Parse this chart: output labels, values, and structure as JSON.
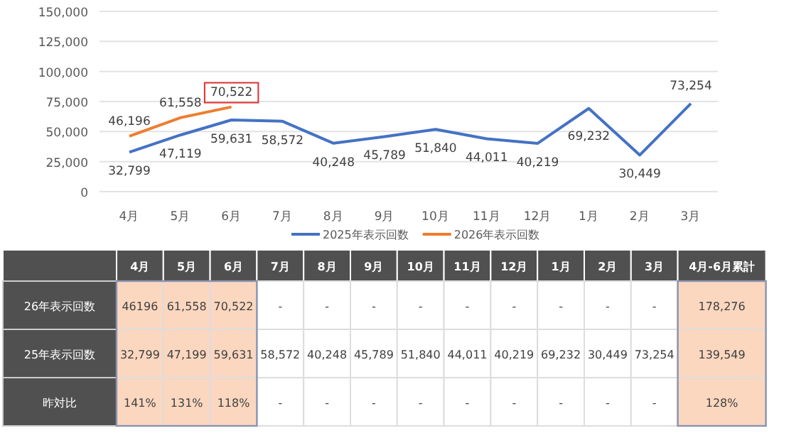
{
  "chart_data": {
    "type": "line",
    "categories": [
      "4月",
      "5月",
      "6月",
      "7月",
      "8月",
      "9月",
      "10月",
      "11月",
      "12月",
      "1月",
      "2月",
      "3月"
    ],
    "series": [
      {
        "name": "2025年表示回数",
        "color": "#4472c4",
        "values": [
          32799,
          47119,
          59631,
          58572,
          40248,
          45789,
          51840,
          44011,
          40219,
          69232,
          30449,
          73254
        ],
        "value_labels": [
          "32,799",
          "47,119",
          "59,631",
          "58,572",
          "40,248",
          "45,789",
          "51,840",
          "44,011",
          "40,219",
          "69,232",
          "30,449",
          "73,254"
        ]
      },
      {
        "name": "2026年表示回数",
        "color": "#ed7d31",
        "values": [
          46196,
          61558,
          70522,
          null,
          null,
          null,
          null,
          null,
          null,
          null,
          null,
          null
        ],
        "value_labels": [
          "46,196",
          "61,558",
          "70,522",
          null,
          null,
          null,
          null,
          null,
          null,
          null,
          null,
          null
        ]
      }
    ],
    "ylim": [
      0,
      150000
    ],
    "yticks": [
      {
        "value": 0,
        "label": "0"
      },
      {
        "value": 25000,
        "label": "25,000"
      },
      {
        "value": 50000,
        "label": "50,000"
      },
      {
        "value": 75000,
        "label": "75,000"
      },
      {
        "value": 100000,
        "label": "100,000"
      },
      {
        "value": 125000,
        "label": "125,000"
      },
      {
        "value": 150000,
        "label": "150,000"
      }
    ],
    "grid": "y",
    "legend": "bottom",
    "line_style": "solid",
    "marker": "none",
    "annotations": [
      "4月",
      "5月",
      "6月",
      "7月",
      "8月",
      "9月",
      "10月",
      "11月",
      "12月",
      "1月",
      "2月",
      "3月",
      "4月-6月累計",
      "26年表示回数",
      "46196",
      "61,558",
      "70,522",
      "-",
      "-",
      "-",
      "-",
      "-",
      "-",
      "-",
      "-",
      "-",
      "178,276",
      "25年表示回数",
      "32,799",
      "47,199",
      "59,631",
      "58,572",
      "40,248",
      "45,789",
      "51,840",
      "44,011",
      "40,219",
      "69,232",
      "30,449",
      "73,254",
      "139,549",
      "昨対比",
      "141%",
      "131%",
      "118%",
      "-",
      "-",
      "-",
      "-",
      "-",
      "-",
      "-",
      "-",
      "-",
      "128%"
    ]
  }
}
